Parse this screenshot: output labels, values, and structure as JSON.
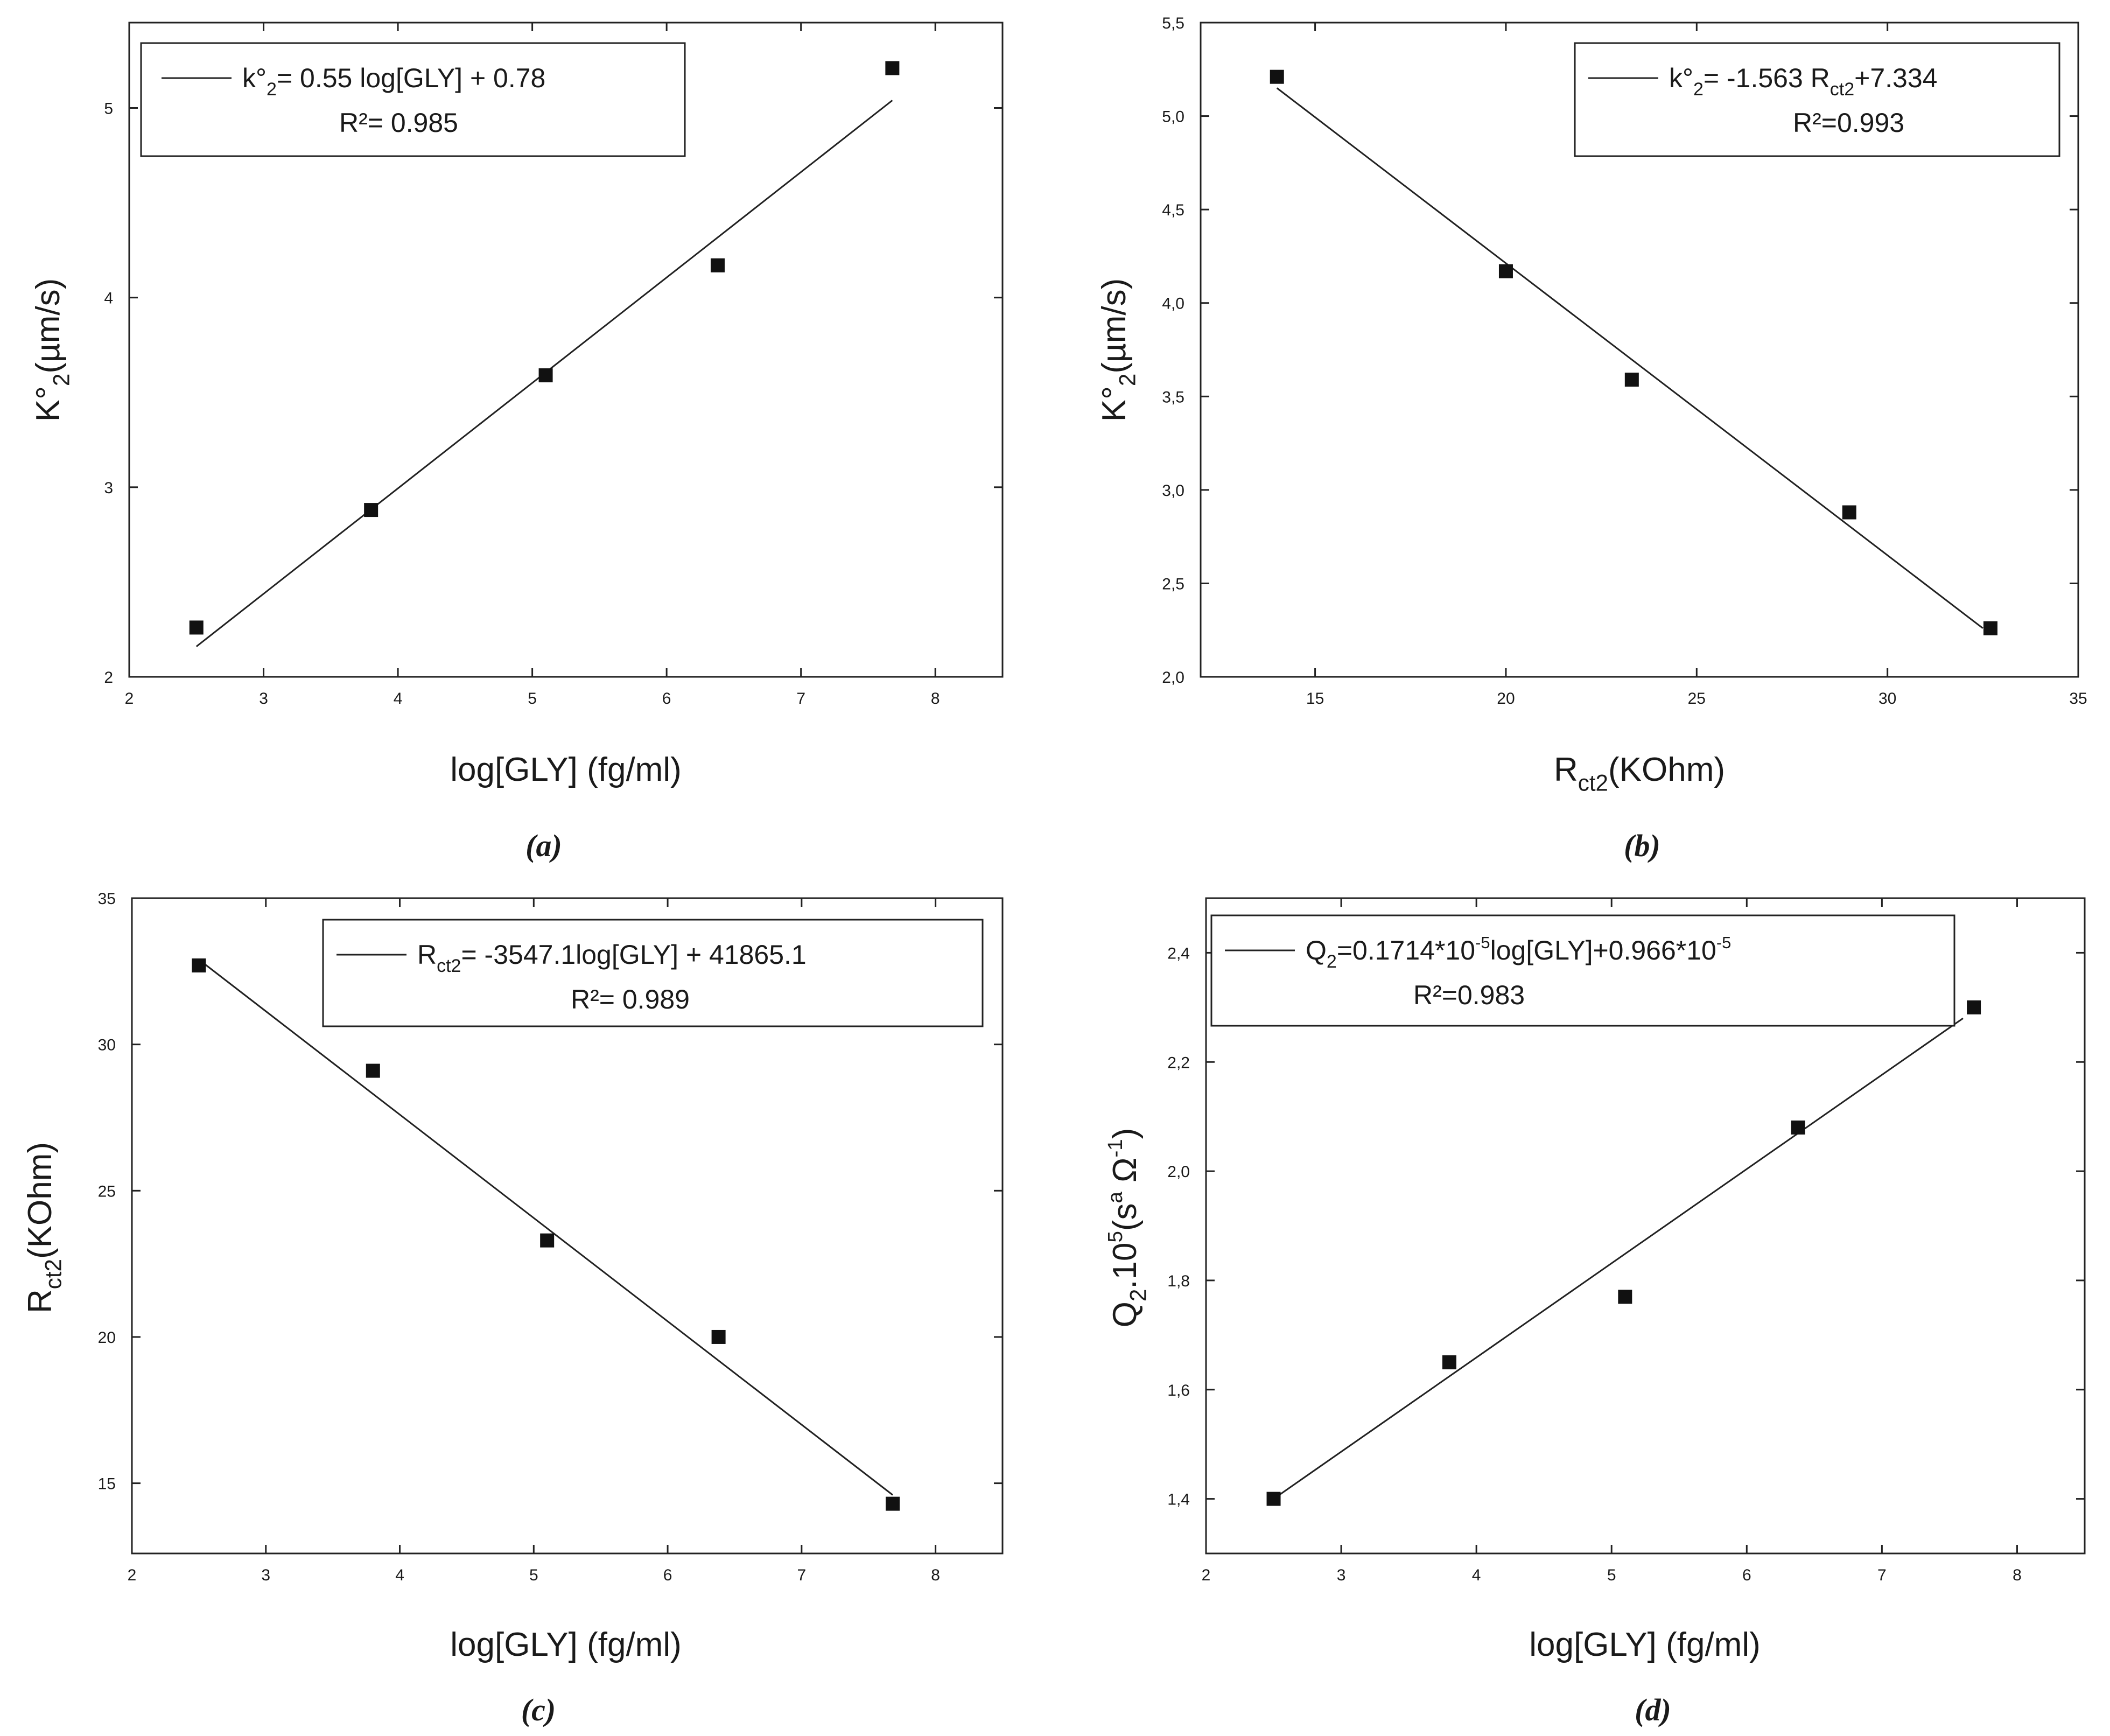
{
  "chart_data": [
    {
      "id": "a",
      "type": "scatter",
      "caption": "(a)",
      "x_var": "log",
      "y_var": "k",
      "xlim": [
        2,
        8.5
      ],
      "ylim": [
        2,
        5.45
      ],
      "xticks": [
        2,
        3,
        4,
        5,
        6,
        7,
        8
      ],
      "yticks": [
        2,
        3,
        4,
        5
      ],
      "ytick_labels": [
        "2",
        "3",
        "4",
        "5"
      ],
      "xlabel": {
        "parts": [
          {
            "t": "log[GLY] (fg/ml)"
          }
        ]
      },
      "ylabel": {
        "parts": [
          {
            "t": "K°"
          },
          {
            "t": "2",
            "sub": true
          },
          {
            "t": "(µm/s)"
          }
        ]
      },
      "points": {
        "x": [
          2.5,
          3.8,
          5.1,
          6.38,
          7.68
        ],
        "y": [
          2.26,
          2.88,
          3.59,
          4.17,
          5.21
        ]
      },
      "fit": {
        "x": [
          2.5,
          7.68
        ],
        "y": [
          2.16,
          5.04
        ]
      },
      "legend": {
        "position": "top-left",
        "equation": [
          {
            "t": "k°"
          },
          {
            "t": "2",
            "sub": true
          },
          {
            "t": "= 0.55 log[GLY] + 0.78"
          }
        ],
        "r2": "R²= 0.985"
      }
    },
    {
      "id": "b",
      "type": "scatter",
      "caption": "(b)",
      "x_var": "rct",
      "y_var": "k",
      "xlim": [
        12,
        35
      ],
      "ylim": [
        2.0,
        5.5
      ],
      "xticks": [
        15,
        20,
        25,
        30,
        35
      ],
      "yticks": [
        2.0,
        2.5,
        3.0,
        3.5,
        4.0,
        4.5,
        5.0,
        5.5
      ],
      "ytick_labels": [
        "2,0",
        "2,5",
        "3,0",
        "3,5",
        "4,0",
        "4,5",
        "5,0",
        "5,5"
      ],
      "xlabel": {
        "parts": [
          {
            "t": "R"
          },
          {
            "t": "ct2",
            "sub": true
          },
          {
            "t": "(KOhm)"
          }
        ]
      },
      "ylabel": {
        "parts": [
          {
            "t": "K°"
          },
          {
            "t": "2",
            "sub": true
          },
          {
            "t": "(µm/s)"
          }
        ]
      },
      "points": {
        "x": [
          14.0,
          20.0,
          23.3,
          29.0,
          32.7
        ],
        "y": [
          5.21,
          4.17,
          3.59,
          2.88,
          2.26
        ]
      },
      "fit": {
        "x": [
          14.0,
          32.5
        ],
        "y": [
          5.15,
          2.26
        ]
      },
      "legend": {
        "position": "top-right",
        "equation": [
          {
            "t": "k°"
          },
          {
            "t": "2",
            "sub": true
          },
          {
            "t": "= -1.563 R"
          },
          {
            "t": "ct2",
            "sub": true
          },
          {
            "t": "+7.334"
          }
        ],
        "r2": "R²=0.993"
      }
    },
    {
      "id": "c",
      "type": "scatter",
      "caption": "(c)",
      "x_var": "log",
      "y_var": "rct",
      "xlim": [
        2,
        8.5
      ],
      "ylim": [
        12.6,
        35
      ],
      "xticks": [
        2,
        3,
        4,
        5,
        6,
        7,
        8
      ],
      "yticks": [
        15,
        20,
        25,
        30,
        35
      ],
      "ytick_labels": [
        "15",
        "20",
        "25",
        "30",
        "35"
      ],
      "xlabel": {
        "parts": [
          {
            "t": "log[GLY] (fg/ml)"
          }
        ]
      },
      "ylabel": {
        "parts": [
          {
            "t": "R"
          },
          {
            "t": "ct2",
            "sub": true
          },
          {
            "t": "(KOhm)"
          }
        ]
      },
      "points": {
        "x": [
          2.5,
          3.8,
          5.1,
          6.38,
          7.68
        ],
        "y": [
          32.7,
          29.1,
          23.3,
          20.0,
          14.3
        ]
      },
      "fit": {
        "x": [
          2.5,
          7.68
        ],
        "y": [
          32.9,
          14.6
        ]
      },
      "legend": {
        "position": "top-right",
        "equation": [
          {
            "t": "R"
          },
          {
            "t": "ct2",
            "sub": true
          },
          {
            "t": "= -3547.1log[GLY] + 41865.1"
          }
        ],
        "r2": "R²= 0.989"
      }
    },
    {
      "id": "d",
      "type": "scatter",
      "caption": "(d)",
      "x_var": "log",
      "y_var": "q",
      "xlim": [
        2,
        8.5
      ],
      "ylim": [
        1.3,
        2.5
      ],
      "xticks": [
        2,
        3,
        4,
        5,
        6,
        7,
        8
      ],
      "yticks": [
        1.4,
        1.6,
        1.8,
        2.0,
        2.2,
        2.4
      ],
      "ytick_labels": [
        "1,4",
        "1,6",
        "1,8",
        "2,0",
        "2,2",
        "2,4"
      ],
      "xlabel": {
        "parts": [
          {
            "t": "log[GLY] (fg/ml)"
          }
        ]
      },
      "ylabel": {
        "parts": [
          {
            "t": "Q"
          },
          {
            "t": "2",
            "sub": true
          },
          {
            "t": ".10"
          },
          {
            "t": "5",
            "sup": true
          },
          {
            "t": "(s"
          },
          {
            "t": "a",
            "sup": true
          },
          {
            "t": " Ω"
          },
          {
            "t": "-1",
            "sup": true
          },
          {
            "t": ")"
          }
        ]
      },
      "points": {
        "x": [
          2.5,
          3.8,
          5.1,
          6.38,
          7.68
        ],
        "y": [
          1.4,
          1.65,
          1.77,
          2.08,
          2.3
        ]
      },
      "fit": {
        "x": [
          2.5,
          7.6
        ],
        "y": [
          1.4,
          2.28
        ]
      },
      "legend": {
        "position": "top-left",
        "equation": [
          {
            "t": "Q"
          },
          {
            "t": "2",
            "sub": true
          },
          {
            "t": "=0.1714*10"
          },
          {
            "t": "-5",
            "sup": true
          },
          {
            "t": "log[GLY]+0.966*10"
          },
          {
            "t": "-5",
            "sup": true
          }
        ],
        "r2": "R²=0.983"
      }
    }
  ]
}
